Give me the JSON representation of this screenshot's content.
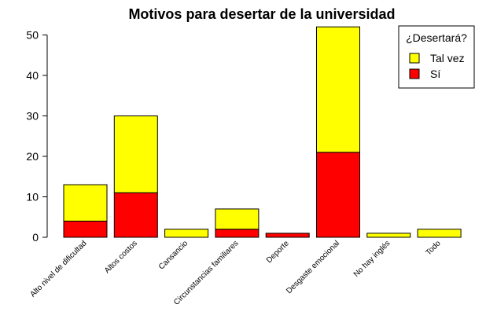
{
  "chart_data": {
    "type": "bar",
    "stacked": true,
    "title": "Motivos para desertar de la universidad",
    "categories": [
      "Alto nivel de dificultad",
      "Altos costos",
      "Cansancio",
      "Circunstancias familiares",
      "Deporte",
      "Desgaste emocional",
      "No hay inglés",
      "Todo"
    ],
    "series": [
      {
        "name": "Sí",
        "color": "#ff0000",
        "values": [
          4,
          11,
          0,
          2,
          1,
          21,
          0,
          0
        ]
      },
      {
        "name": "Tal vez",
        "color": "#ffff00",
        "values": [
          9,
          19,
          2,
          5,
          0,
          31,
          1,
          2
        ]
      }
    ],
    "yticks": [
      0,
      10,
      20,
      30,
      40,
      50
    ],
    "ylim": [
      0,
      52
    ],
    "grid": false,
    "legend": {
      "title": "¿Desertará?",
      "position": "top-right",
      "order": [
        "Tal vez",
        "Sí"
      ]
    }
  }
}
